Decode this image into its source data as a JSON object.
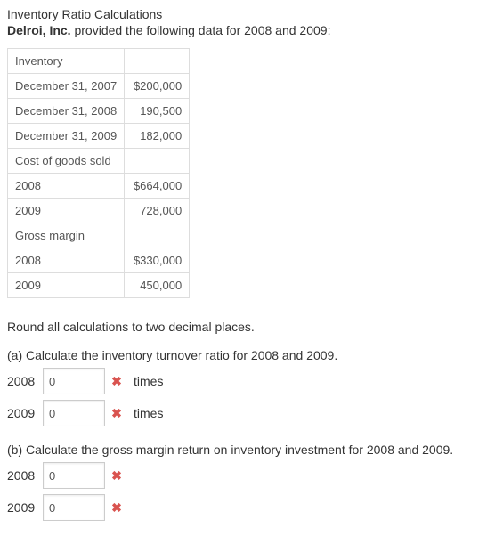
{
  "heading": "Inventory Ratio Calculations",
  "intro_html": "<b>Delroi, Inc.</b> provided the following data for 2008 and 2009:",
  "table": {
    "rows": [
      {
        "label": "Inventory",
        "value": null
      },
      {
        "label": "December 31, 2007",
        "value": "$200,000"
      },
      {
        "label": "December 31, 2008",
        "value": "190,500"
      },
      {
        "label": "December 31, 2009",
        "value": "182,000"
      },
      {
        "label": "Cost of goods sold",
        "value": null
      },
      {
        "label": "2008",
        "value": "$664,000"
      },
      {
        "label": "2009",
        "value": "728,000"
      },
      {
        "label": "Gross margin",
        "value": null
      },
      {
        "label": "2008",
        "value": "$330,000"
      },
      {
        "label": "2009",
        "value": "450,000"
      }
    ]
  },
  "instruction": "Round all calculations to two decimal places.",
  "parts": {
    "a": {
      "prompt": "(a) Calculate the inventory turnover ratio for 2008 and 2009.",
      "rows": [
        {
          "year": "2008",
          "value": "0",
          "correct": false,
          "unit": "times"
        },
        {
          "year": "2009",
          "value": "0",
          "correct": false,
          "unit": "times"
        }
      ]
    },
    "b": {
      "prompt": "(b) Calculate the gross margin return on inventory investment for 2008 and 2009.",
      "rows": [
        {
          "year": "2008",
          "value": "0",
          "correct": false,
          "unit": ""
        },
        {
          "year": "2009",
          "value": "0",
          "correct": false,
          "unit": ""
        }
      ]
    }
  },
  "icons": {
    "incorrect_glyph": "✖"
  }
}
